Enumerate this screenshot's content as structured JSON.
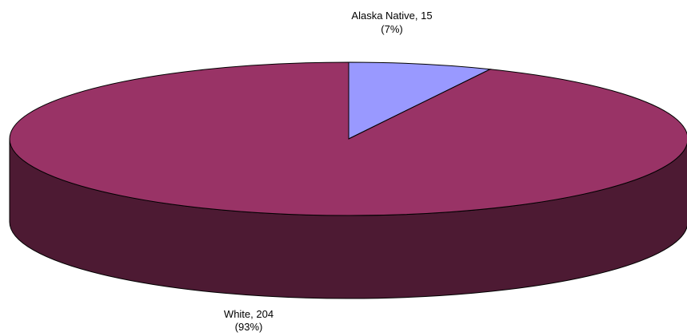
{
  "chart_data": {
    "type": "pie",
    "style": "3d",
    "title": "",
    "slices": [
      {
        "category": "Alaska Native",
        "value": 15,
        "percent": 7,
        "name_value_label": "Alaska Native, 15",
        "percent_label": "(7%)",
        "color": "#9999ff"
      },
      {
        "category": "White",
        "value": 204,
        "percent": 93,
        "name_value_label": "White, 204",
        "percent_label": "(93%)",
        "color": "#993366"
      }
    ],
    "side_color": "#4d1a33",
    "legend": "none"
  }
}
